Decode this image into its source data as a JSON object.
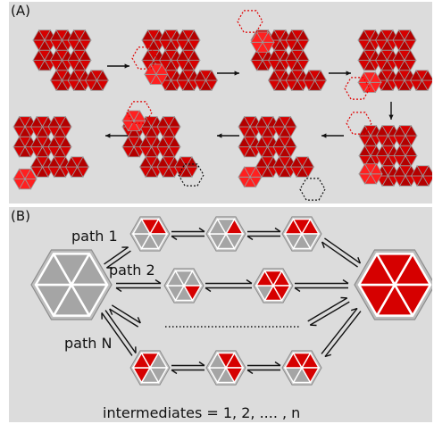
{
  "panel_a": {
    "label": "(A)"
  },
  "panel_b": {
    "label": "(B)",
    "paths": [
      "path 1",
      "path 2",
      "path N"
    ],
    "caption": "intermediates = 1, 2, .... , n"
  },
  "colors": {
    "red": "#d60000",
    "dark_red": "#b40000",
    "grey_hex": "#a5a5a5",
    "background": "#dcdcdc"
  }
}
